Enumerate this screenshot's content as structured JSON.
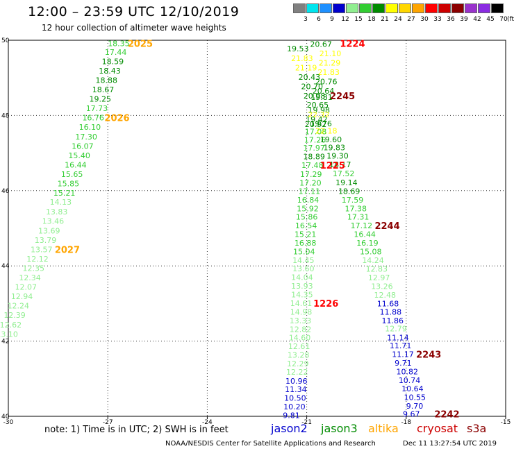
{
  "title": "12:00 – 23:59 UTC 12/10/2019",
  "subtitle": "12 hour collection of altimeter wave heights",
  "note": "note: 1) Time is in UTC; 2) SWH is in feet",
  "credit": "NOAA/NESDIS Center for Satellite Applications and Research",
  "timestamp": "Dec 11 13:27:54 UTC 2019",
  "colorbar": {
    "unit": "(ft)",
    "colors": [
      "#808080",
      "#00e5ee",
      "#1e90ff",
      "#0000cd",
      "#90ee90",
      "#32cd32",
      "#008b00",
      "#ffff00",
      "#ffd700",
      "#ffa500",
      "#ff0000",
      "#cd0000",
      "#8b0000",
      "#9932cc",
      "#8a2be2",
      "#000000"
    ],
    "labels": [
      "3",
      "6",
      "9",
      "12",
      "15",
      "18",
      "21",
      "24",
      "27",
      "30",
      "33",
      "36",
      "39",
      "42",
      "45",
      "70"
    ]
  },
  "satellites": [
    {
      "name": "jason2",
      "color": "#0000cd"
    },
    {
      "name": "jason3",
      "color": "#008b00"
    },
    {
      "name": "altika",
      "color": "#ffa500"
    },
    {
      "name": "cryosat",
      "color": "#cd0000"
    },
    {
      "name": "s3a",
      "color": "#8b0000"
    }
  ],
  "chart_data": {
    "type": "scatter",
    "x_label": "longitude",
    "y_label": "latitude",
    "xlim": [
      -30,
      -15
    ],
    "ylim": [
      40,
      50
    ],
    "x_ticks": [
      -30,
      -27,
      -24,
      -21,
      -18,
      -15
    ],
    "y_ticks": [
      40,
      42,
      44,
      46,
      48,
      50
    ],
    "grid": true,
    "points": [
      {
        "x": -27.0,
        "y": 49.92,
        "v": "18.35",
        "c": "#32cd32"
      },
      {
        "x": -27.09,
        "y": 49.69,
        "v": "17.44",
        "c": "#32cd32"
      },
      {
        "x": -27.18,
        "y": 49.44,
        "v": "18.59",
        "c": "#008b00"
      },
      {
        "x": -27.27,
        "y": 49.19,
        "v": "18.43",
        "c": "#008b00"
      },
      {
        "x": -27.37,
        "y": 48.94,
        "v": "18.88",
        "c": "#008b00"
      },
      {
        "x": -27.47,
        "y": 48.69,
        "v": "18.67",
        "c": "#008b00"
      },
      {
        "x": -27.56,
        "y": 48.44,
        "v": "19.25",
        "c": "#008b00"
      },
      {
        "x": -27.66,
        "y": 48.19,
        "v": "17.73",
        "c": "#32cd32"
      },
      {
        "x": -27.77,
        "y": 47.94,
        "v": "16.76",
        "c": "#32cd32"
      },
      {
        "x": -27.87,
        "y": 47.69,
        "v": "16.10",
        "c": "#32cd32"
      },
      {
        "x": -27.98,
        "y": 47.44,
        "v": "17.30",
        "c": "#32cd32"
      },
      {
        "x": -28.09,
        "y": 47.19,
        "v": "16.07",
        "c": "#32cd32"
      },
      {
        "x": -28.19,
        "y": 46.94,
        "v": "15.40",
        "c": "#32cd32"
      },
      {
        "x": -28.3,
        "y": 46.69,
        "v": "16.44",
        "c": "#32cd32"
      },
      {
        "x": -28.41,
        "y": 46.44,
        "v": "15.65",
        "c": "#32cd32"
      },
      {
        "x": -28.52,
        "y": 46.19,
        "v": "15.85",
        "c": "#32cd32"
      },
      {
        "x": -28.64,
        "y": 45.94,
        "v": "15.21",
        "c": "#32cd32"
      },
      {
        "x": -28.75,
        "y": 45.7,
        "v": "14.13",
        "c": "#90ee90"
      },
      {
        "x": -28.87,
        "y": 45.44,
        "v": "13.83",
        "c": "#90ee90"
      },
      {
        "x": -28.98,
        "y": 45.19,
        "v": "13.46",
        "c": "#90ee90"
      },
      {
        "x": -29.1,
        "y": 44.94,
        "v": "13.69",
        "c": "#90ee90"
      },
      {
        "x": -29.21,
        "y": 44.69,
        "v": "13.79",
        "c": "#90ee90"
      },
      {
        "x": -29.33,
        "y": 44.44,
        "v": "13.57",
        "c": "#90ee90"
      },
      {
        "x": -29.45,
        "y": 44.19,
        "v": "12.12",
        "c": "#90ee90"
      },
      {
        "x": -29.57,
        "y": 43.94,
        "v": "12.35",
        "c": "#90ee90"
      },
      {
        "x": -29.68,
        "y": 43.69,
        "v": "12.34",
        "c": "#90ee90"
      },
      {
        "x": -29.8,
        "y": 43.44,
        "v": "12.07",
        "c": "#90ee90"
      },
      {
        "x": -29.92,
        "y": 43.19,
        "v": "12.94",
        "c": "#90ee90"
      },
      {
        "x": -30.03,
        "y": 42.94,
        "v": "12.24",
        "c": "#90ee90"
      },
      {
        "x": -30.14,
        "y": 42.69,
        "v": "12.39",
        "c": "#90ee90"
      },
      {
        "x": -30.26,
        "y": 42.44,
        "v": "12.62",
        "c": "#90ee90"
      },
      {
        "x": -30.37,
        "y": 42.19,
        "v": "13.10",
        "c": "#90ee90"
      },
      {
        "x": -20.9,
        "y": 49.9,
        "v": "20.67",
        "c": "#008b00"
      },
      {
        "x": -21.6,
        "y": 49.78,
        "v": "19.53",
        "c": "#008b00"
      },
      {
        "x": -20.62,
        "y": 49.65,
        "v": "21.10",
        "c": "#ffff00"
      },
      {
        "x": -21.47,
        "y": 49.52,
        "v": "21.83",
        "c": "#ffff00"
      },
      {
        "x": -20.64,
        "y": 49.4,
        "v": "21.29",
        "c": "#ffff00"
      },
      {
        "x": -21.35,
        "y": 49.27,
        "v": "21.19",
        "c": "#ffff00"
      },
      {
        "x": -20.67,
        "y": 49.15,
        "v": "21.83",
        "c": "#ffff00"
      },
      {
        "x": -21.25,
        "y": 49.02,
        "v": "20.43",
        "c": "#008b00"
      },
      {
        "x": -20.74,
        "y": 48.9,
        "v": "20.76",
        "c": "#008b00"
      },
      {
        "x": -21.17,
        "y": 48.77,
        "v": "20.70",
        "c": "#008b00"
      },
      {
        "x": -20.83,
        "y": 48.65,
        "v": "20.64",
        "c": "#008b00"
      },
      {
        "x": -21.1,
        "y": 48.52,
        "v": "20.98",
        "c": "#008b00"
      },
      {
        "x": -20.88,
        "y": 48.49,
        "v": "19.81",
        "c": "#008b00"
      },
      {
        "x": -21.0,
        "y": 48.28,
        "v": "20.65",
        "c": "#008b00"
      },
      {
        "x": -20.96,
        "y": 48.15,
        "v": "19.98",
        "c": "#008b00"
      },
      {
        "x": -20.97,
        "y": 48.03,
        "v": "22.32",
        "c": "#ffff00"
      },
      {
        "x": -21.03,
        "y": 47.9,
        "v": "19.42",
        "c": "#008b00"
      },
      {
        "x": -21.06,
        "y": 47.77,
        "v": "20.92",
        "c": "#008b00"
      },
      {
        "x": -20.9,
        "y": 47.79,
        "v": "19.76",
        "c": "#008b00"
      },
      {
        "x": -21.06,
        "y": 47.57,
        "v": "17.08",
        "c": "#32cd32"
      },
      {
        "x": -20.74,
        "y": 47.59,
        "v": "22.18",
        "c": "#ffff00"
      },
      {
        "x": -21.08,
        "y": 47.35,
        "v": "17.26",
        "c": "#32cd32"
      },
      {
        "x": -20.6,
        "y": 47.36,
        "v": "19.60",
        "c": "#008b00"
      },
      {
        "x": -21.11,
        "y": 47.14,
        "v": "17.97",
        "c": "#32cd32"
      },
      {
        "x": -20.5,
        "y": 47.15,
        "v": "19.83",
        "c": "#008b00"
      },
      {
        "x": -21.11,
        "y": 46.91,
        "v": "18.89",
        "c": "#008b00"
      },
      {
        "x": -20.4,
        "y": 46.93,
        "v": "19.30",
        "c": "#008b00"
      },
      {
        "x": -21.16,
        "y": 46.68,
        "v": "17.48",
        "c": "#32cd32"
      },
      {
        "x": -20.32,
        "y": 46.7,
        "v": "18.17",
        "c": "#008b00"
      },
      {
        "x": -20.22,
        "y": 46.46,
        "v": "17.52",
        "c": "#32cd32"
      },
      {
        "x": -21.2,
        "y": 46.44,
        "v": "17.29",
        "c": "#32cd32"
      },
      {
        "x": -21.22,
        "y": 46.21,
        "v": "17.20",
        "c": "#32cd32"
      },
      {
        "x": -20.13,
        "y": 46.22,
        "v": "19.14",
        "c": "#008b00"
      },
      {
        "x": -21.25,
        "y": 45.99,
        "v": "17.11",
        "c": "#32cd32"
      },
      {
        "x": -20.05,
        "y": 45.99,
        "v": "18.69",
        "c": "#008b00"
      },
      {
        "x": -21.29,
        "y": 45.76,
        "v": "16.84",
        "c": "#32cd32"
      },
      {
        "x": -19.95,
        "y": 45.76,
        "v": "17.59",
        "c": "#32cd32"
      },
      {
        "x": -21.3,
        "y": 45.53,
        "v": "15.92",
        "c": "#32cd32"
      },
      {
        "x": -19.85,
        "y": 45.53,
        "v": "17.38",
        "c": "#32cd32"
      },
      {
        "x": -21.33,
        "y": 45.3,
        "v": "15.86",
        "c": "#32cd32"
      },
      {
        "x": -19.78,
        "y": 45.3,
        "v": "17.31",
        "c": "#32cd32"
      },
      {
        "x": -21.35,
        "y": 45.07,
        "v": "16.54",
        "c": "#32cd32"
      },
      {
        "x": -19.68,
        "y": 45.07,
        "v": "17.12",
        "c": "#32cd32"
      },
      {
        "x": -21.37,
        "y": 44.84,
        "v": "15.21",
        "c": "#32cd32"
      },
      {
        "x": -19.58,
        "y": 44.84,
        "v": "16.44",
        "c": "#32cd32"
      },
      {
        "x": -21.37,
        "y": 44.61,
        "v": "16.88",
        "c": "#32cd32"
      },
      {
        "x": -19.5,
        "y": 44.61,
        "v": "16.19",
        "c": "#32cd32"
      },
      {
        "x": -21.41,
        "y": 44.38,
        "v": "15.04",
        "c": "#32cd32"
      },
      {
        "x": -19.4,
        "y": 44.38,
        "v": "15.08",
        "c": "#32cd32"
      },
      {
        "x": -21.43,
        "y": 44.15,
        "v": "14.45",
        "c": "#90ee90"
      },
      {
        "x": -19.33,
        "y": 44.15,
        "v": "14.24",
        "c": "#90ee90"
      },
      {
        "x": -21.43,
        "y": 43.93,
        "v": "13.60",
        "c": "#90ee90"
      },
      {
        "x": -19.22,
        "y": 43.92,
        "v": "12.83",
        "c": "#90ee90"
      },
      {
        "x": -21.47,
        "y": 43.7,
        "v": "14.04",
        "c": "#90ee90"
      },
      {
        "x": -19.15,
        "y": 43.69,
        "v": "12.97",
        "c": "#90ee90"
      },
      {
        "x": -21.47,
        "y": 43.47,
        "v": "13.93",
        "c": "#90ee90"
      },
      {
        "x": -19.06,
        "y": 43.46,
        "v": "13.26",
        "c": "#90ee90"
      },
      {
        "x": -21.47,
        "y": 43.24,
        "v": "14.35",
        "c": "#90ee90"
      },
      {
        "x": -18.97,
        "y": 43.23,
        "v": "12.48",
        "c": "#90ee90"
      },
      {
        "x": -21.5,
        "y": 43.01,
        "v": "14.61",
        "c": "#90ee90"
      },
      {
        "x": -18.88,
        "y": 43.0,
        "v": "11.68",
        "c": "#0000cd"
      },
      {
        "x": -21.5,
        "y": 42.78,
        "v": "14.98",
        "c": "#90ee90"
      },
      {
        "x": -18.8,
        "y": 42.78,
        "v": "11.88",
        "c": "#0000cd"
      },
      {
        "x": -21.52,
        "y": 42.55,
        "v": "13.33",
        "c": "#90ee90"
      },
      {
        "x": -18.74,
        "y": 42.55,
        "v": "11.86",
        "c": "#0000cd"
      },
      {
        "x": -21.52,
        "y": 42.32,
        "v": "12.82",
        "c": "#90ee90"
      },
      {
        "x": -18.64,
        "y": 42.33,
        "v": "12.79",
        "c": "#90ee90"
      },
      {
        "x": -21.54,
        "y": 42.09,
        "v": "14.60",
        "c": "#90ee90"
      },
      {
        "x": -18.58,
        "y": 42.09,
        "v": "11.14",
        "c": "#0000cd"
      },
      {
        "x": -21.56,
        "y": 41.86,
        "v": "12.61",
        "c": "#90ee90"
      },
      {
        "x": -18.5,
        "y": 41.88,
        "v": "11.71",
        "c": "#0000cd"
      },
      {
        "x": -21.58,
        "y": 41.63,
        "v": "13.28",
        "c": "#90ee90"
      },
      {
        "x": -18.43,
        "y": 41.65,
        "v": "11.17",
        "c": "#0000cd"
      },
      {
        "x": -21.6,
        "y": 41.4,
        "v": "12.29",
        "c": "#90ee90"
      },
      {
        "x": -18.35,
        "y": 41.42,
        "v": "9.71",
        "c": "#0000cd"
      },
      {
        "x": -21.62,
        "y": 41.18,
        "v": "12.22",
        "c": "#90ee90"
      },
      {
        "x": -18.3,
        "y": 41.19,
        "v": "10.82",
        "c": "#0000cd"
      },
      {
        "x": -21.64,
        "y": 40.94,
        "v": "10.96",
        "c": "#0000cd"
      },
      {
        "x": -18.23,
        "y": 40.96,
        "v": "10.74",
        "c": "#0000cd"
      },
      {
        "x": -21.66,
        "y": 40.72,
        "v": "11.34",
        "c": "#0000cd"
      },
      {
        "x": -18.14,
        "y": 40.74,
        "v": "10.64",
        "c": "#0000cd"
      },
      {
        "x": -21.68,
        "y": 40.49,
        "v": "10.50",
        "c": "#0000cd"
      },
      {
        "x": -18.07,
        "y": 40.51,
        "v": "10.55",
        "c": "#0000cd"
      },
      {
        "x": -21.7,
        "y": 40.26,
        "v": "10.20",
        "c": "#0000cd"
      },
      {
        "x": -18.0,
        "y": 40.28,
        "v": "9.70",
        "c": "#0000cd"
      },
      {
        "x": -21.72,
        "y": 40.03,
        "v": "9.81",
        "c": "#0000cd"
      },
      {
        "x": -18.1,
        "y": 40.06,
        "v": "9.67",
        "c": "#0000cd"
      }
    ],
    "annotations": [
      {
        "x": -26.4,
        "y": 49.92,
        "t": "2025",
        "c": "#ffa500"
      },
      {
        "x": -27.1,
        "y": 47.94,
        "t": "2026",
        "c": "#ffa500"
      },
      {
        "x": -28.6,
        "y": 44.44,
        "t": "2027",
        "c": "#ffa500"
      },
      {
        "x": -20.0,
        "y": 49.92,
        "t": "1224",
        "c": "#ff0000"
      },
      {
        "x": -20.3,
        "y": 48.52,
        "t": "2245",
        "c": "#8b0000"
      },
      {
        "x": -20.6,
        "y": 46.68,
        "t": "1225",
        "c": "#ff0000"
      },
      {
        "x": -18.95,
        "y": 45.07,
        "t": "2244",
        "c": "#8b0000"
      },
      {
        "x": -20.8,
        "y": 43.01,
        "t": "1226",
        "c": "#ff0000"
      },
      {
        "x": -17.7,
        "y": 41.65,
        "t": "2243",
        "c": "#8b0000"
      },
      {
        "x": -17.15,
        "y": 40.06,
        "t": "2242",
        "c": "#8b0000"
      }
    ]
  }
}
